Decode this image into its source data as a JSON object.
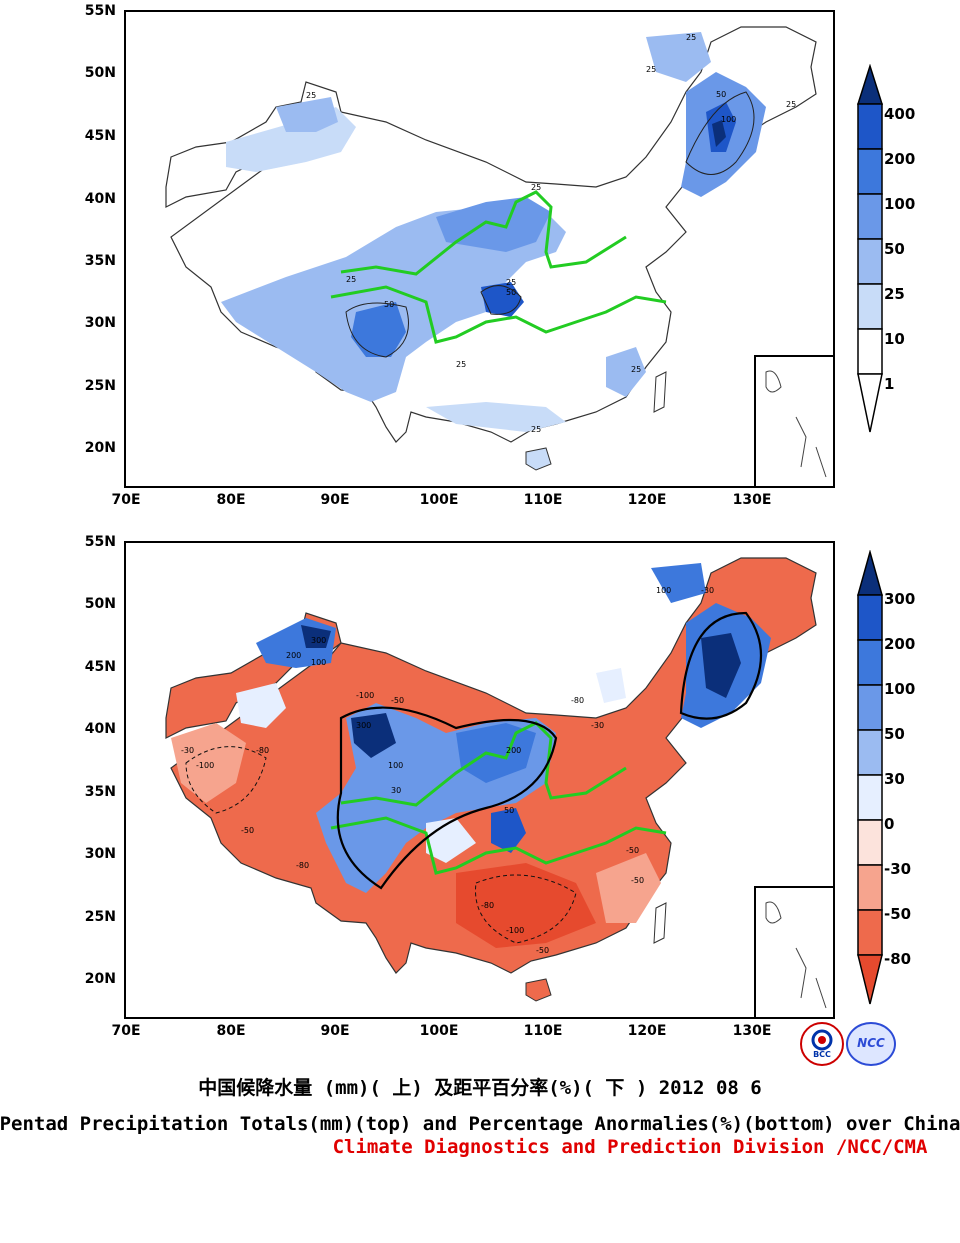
{
  "top_panel": {
    "lat_labels": [
      "55N",
      "50N",
      "45N",
      "40N",
      "35N",
      "30N",
      "25N",
      "20N"
    ],
    "lon_labels": [
      "70E",
      "80E",
      "90E",
      "100E",
      "110E",
      "120E",
      "130E"
    ],
    "colorbar": {
      "labels": [
        "400",
        "200",
        "100",
        "50",
        "25",
        "10",
        "1"
      ],
      "colors": [
        "#0b2f7a",
        "#1e56c8",
        "#3d78dc",
        "#6a98e8",
        "#9bbbf1",
        "#c8dcf8",
        "#ffffff"
      ]
    },
    "contour_labels": [
      "25",
      "25",
      "25",
      "25",
      "50",
      "100",
      "50",
      "25",
      "25",
      "50",
      "25",
      "25",
      "25",
      "25"
    ]
  },
  "bottom_panel": {
    "lat_labels": [
      "55N",
      "50N",
      "45N",
      "40N",
      "35N",
      "30N",
      "25N",
      "20N"
    ],
    "lon_labels": [
      "70E",
      "80E",
      "90E",
      "100E",
      "110E",
      "120E",
      "130E"
    ],
    "colorbar": {
      "labels": [
        "300",
        "200",
        "100",
        "50",
        "30",
        "0",
        "-30",
        "-50",
        "-80"
      ],
      "colors": [
        "#0b2f7a",
        "#1e56c8",
        "#3d78dc",
        "#6a98e8",
        "#9bbbf1",
        "#e6efff",
        "#fce3dc",
        "#f6a48e",
        "#ee6a4c",
        "#e64a2e"
      ]
    },
    "contour_labels": [
      "100",
      "-30",
      "300",
      "200",
      "100",
      "-100",
      "-50",
      "-80",
      "-30",
      "-50",
      "-80",
      "-100",
      "300",
      "100",
      "200",
      "50",
      "30",
      "-50",
      "-30",
      "-80",
      "-100",
      "-50",
      "-80",
      "-50"
    ]
  },
  "caption": {
    "line1": "中国候降水量 (mm)( 上) 及距平百分率(%)( 下 ) 2012 08 6",
    "line2": "Pentad Precipitation Totals(mm)(top) and Percentage Anormalies(%)(bottom) over China",
    "line3": "Climate Diagnostics and Prediction Division /NCC/CMA"
  },
  "logos": {
    "bcc": "BCC",
    "ncc": "NCC"
  },
  "colors": {
    "river": "#22cc22",
    "blue_dark": "#0b2f7a",
    "red": "#e64a2e",
    "caption_red": "#e00000"
  }
}
